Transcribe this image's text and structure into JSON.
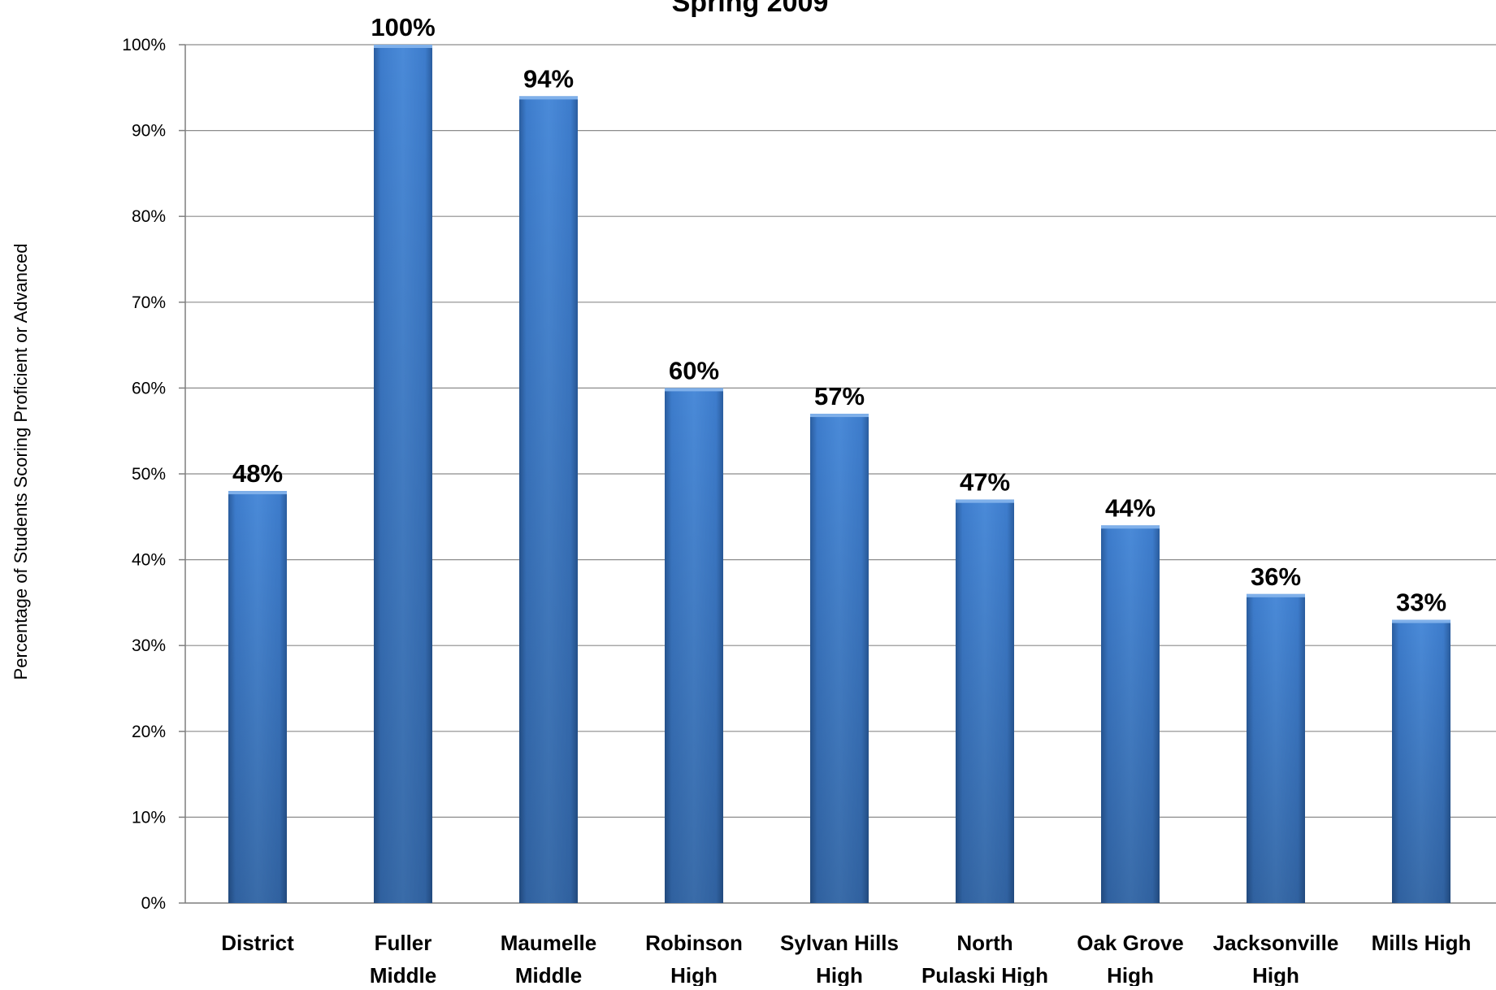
{
  "chart_data": {
    "type": "bar",
    "title": "Spring 2009",
    "ylabel": "Percentage of Students Scoring Proficient or Advanced",
    "xlabel": "",
    "ylim": [
      0,
      100
    ],
    "yticks": [
      0,
      10,
      20,
      30,
      40,
      50,
      60,
      70,
      80,
      90,
      100
    ],
    "ytick_labels": [
      "0%",
      "10%",
      "20%",
      "30%",
      "40%",
      "50%",
      "60%",
      "70%",
      "80%",
      "90%",
      "100%"
    ],
    "grid": true,
    "legend": "none",
    "bar_color": "#3b78c5",
    "categories": [
      [
        "District"
      ],
      [
        "Fuller",
        "Middle"
      ],
      [
        "Maumelle",
        "Middle"
      ],
      [
        "Robinson",
        "High"
      ],
      [
        "Sylvan Hills",
        "High"
      ],
      [
        "North",
        "Pulaski High"
      ],
      [
        "Oak Grove",
        "High"
      ],
      [
        "Jacksonville",
        "High"
      ],
      [
        "Mills High"
      ]
    ],
    "values": [
      48,
      100,
      94,
      60,
      57,
      47,
      44,
      36,
      33
    ],
    "data_labels": [
      "48%",
      "100%",
      "94%",
      "60%",
      "57%",
      "47%",
      "44%",
      "36%",
      "33%"
    ]
  }
}
